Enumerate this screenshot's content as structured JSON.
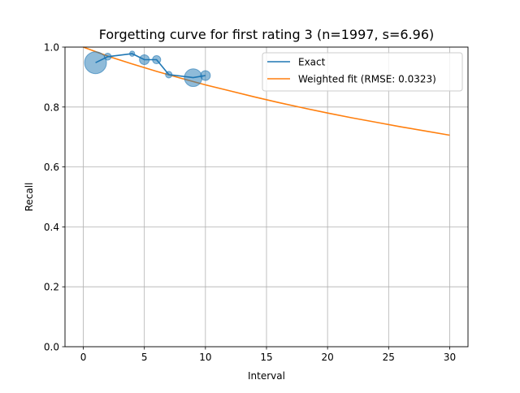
{
  "chart_data": {
    "type": "line",
    "title": "Forgetting curve for first rating 3 (n=1997, s=6.96)",
    "xlabel": "Interval",
    "ylabel": "Recall",
    "xlim": [
      -1.5,
      31.5
    ],
    "ylim": [
      0.0,
      1.0
    ],
    "xticks": [
      0,
      5,
      10,
      15,
      20,
      25,
      30
    ],
    "xtick_labels": [
      "0",
      "5",
      "10",
      "15",
      "20",
      "25",
      "30"
    ],
    "yticks": [
      0.0,
      0.2,
      0.4,
      0.6,
      0.8,
      1.0
    ],
    "ytick_labels": [
      "0.0",
      "0.2",
      "0.4",
      "0.6",
      "0.8",
      "1.0"
    ],
    "grid": true,
    "legend_position": "top-right",
    "stability": 6.96,
    "series": [
      {
        "name": "Exact",
        "kind": "line+bubbles",
        "color": "#1f77b4",
        "x": [
          1,
          2,
          4,
          5,
          6,
          7,
          9,
          10
        ],
        "y": [
          0.948,
          0.968,
          0.978,
          0.958,
          0.958,
          0.908,
          0.898,
          0.905
        ],
        "bubble_weights": [
          1.0,
          0.1,
          0.05,
          0.2,
          0.14,
          0.09,
          0.65,
          0.2
        ]
      },
      {
        "name": "Weighted fit (RMSE: 0.0323)",
        "kind": "curve",
        "color": "#ff7f0e",
        "x": [
          0,
          2,
          4,
          6,
          8,
          10,
          12,
          14,
          16,
          18,
          20,
          22,
          24,
          26,
          28,
          30
        ],
        "y": [
          1.0,
          0.97,
          0.944,
          0.919,
          0.896,
          0.874,
          0.854,
          0.834,
          0.815,
          0.797,
          0.78,
          0.764,
          0.749,
          0.734,
          0.72,
          0.706
        ]
      }
    ]
  }
}
